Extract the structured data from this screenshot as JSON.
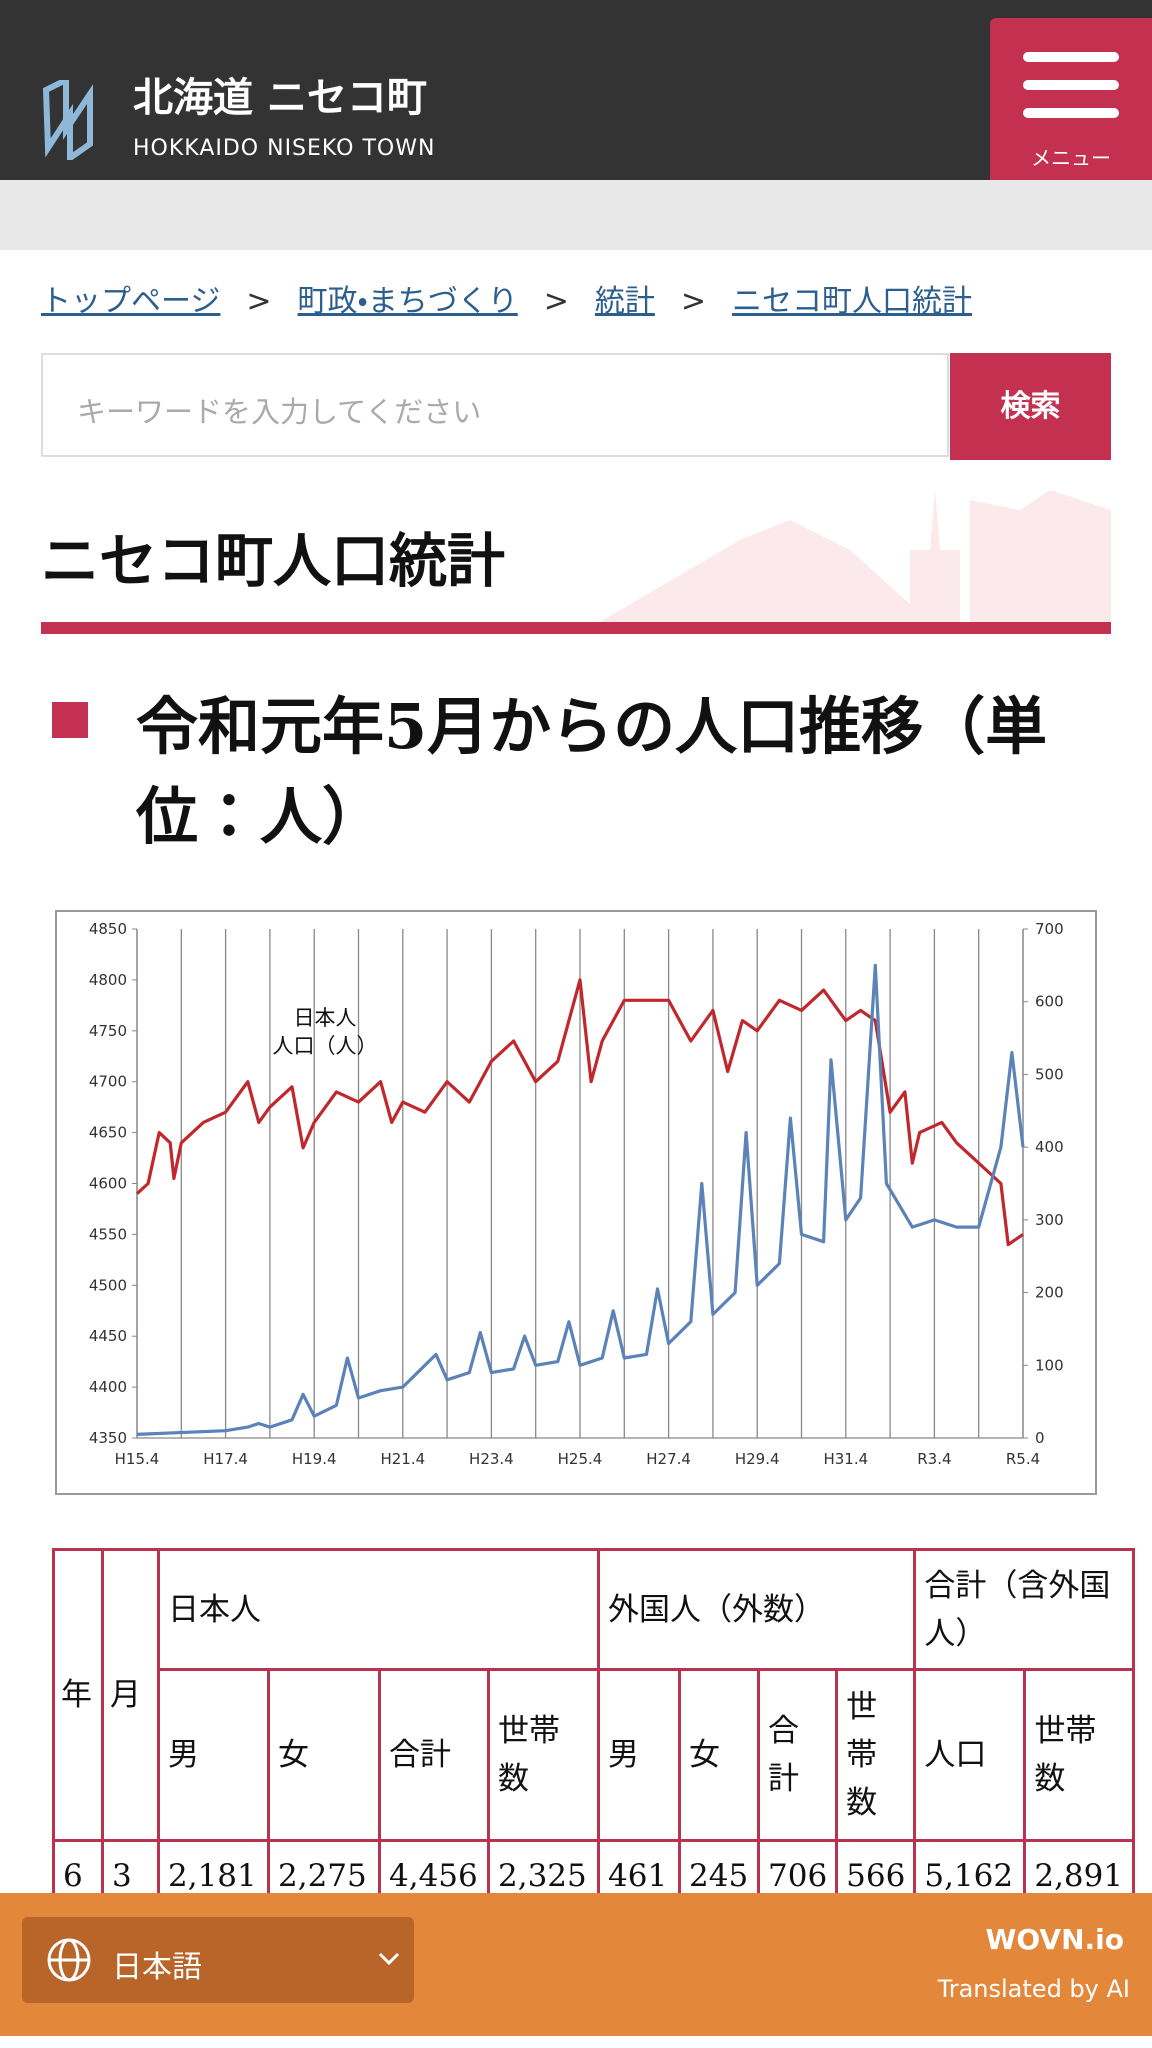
{
  "header": {
    "title": "北海道 ニセコ町",
    "subtitle": "HOKKAIDO NISEKO TOWN",
    "menu": "メニュー"
  },
  "breadcrumb": {
    "items": [
      "トップページ",
      "町政・まちづくり",
      "統計",
      "ニセコ町人口統計"
    ],
    "separator": ">"
  },
  "search": {
    "placeholder": "キーワードを入力してください",
    "button": "検索"
  },
  "page_title": "ニセコ町人口統計",
  "section_heading": "令和元年5月からの人口推移（単位：人）",
  "chart_data": {
    "type": "line",
    "annotation": [
      "日本人",
      "人口（人）"
    ],
    "xlim": [
      0,
      240
    ],
    "xticks": [
      {
        "value": 0,
        "label": "H15.4"
      },
      {
        "value": 24,
        "label": "H17.4"
      },
      {
        "value": 48,
        "label": "H19.4"
      },
      {
        "value": 72,
        "label": "H21.4"
      },
      {
        "value": 96,
        "label": "H23.4"
      },
      {
        "value": 120,
        "label": "H25.4"
      },
      {
        "value": 144,
        "label": "H27.4"
      },
      {
        "value": 168,
        "label": "H29.4"
      },
      {
        "value": 192,
        "label": "H31.4"
      },
      {
        "value": 216,
        "label": "R3.4"
      },
      {
        "value": 240,
        "label": "R5.4"
      }
    ],
    "xminorticks": [
      12,
      36,
      60,
      84,
      108,
      132,
      156,
      180,
      204,
      228
    ],
    "ylim": [
      4350,
      4850
    ],
    "yticks": [
      4350,
      4400,
      4450,
      4500,
      4550,
      4600,
      4650,
      4700,
      4750,
      4800,
      4850
    ],
    "y2lim": [
      0,
      700
    ],
    "y2ticks": [
      0,
      100,
      200,
      300,
      400,
      500,
      600,
      700
    ],
    "grid": "x",
    "series": [
      {
        "color": "#c0282c",
        "axis": "y",
        "x": [
          0,
          3,
          6,
          9,
          10,
          12,
          18,
          24,
          30,
          33,
          36,
          42,
          45,
          48,
          54,
          60,
          66,
          69,
          72,
          78,
          84,
          90,
          96,
          102,
          108,
          114,
          120,
          123,
          126,
          132,
          138,
          144,
          150,
          156,
          160,
          164,
          168,
          174,
          180,
          186,
          192,
          196,
          200,
          204,
          208,
          210,
          212,
          218,
          222,
          228,
          234,
          236,
          240
        ],
        "values": [
          4590,
          4600,
          4650,
          4640,
          4605,
          4640,
          4660,
          4670,
          4700,
          4660,
          4675,
          4695,
          4635,
          4660,
          4690,
          4680,
          4700,
          4660,
          4680,
          4670,
          4700,
          4680,
          4720,
          4740,
          4700,
          4720,
          4800,
          4700,
          4740,
          4780,
          4780,
          4780,
          4740,
          4770,
          4710,
          4760,
          4750,
          4780,
          4770,
          4790,
          4760,
          4770,
          4760,
          4670,
          4690,
          4620,
          4650,
          4660,
          4640,
          4620,
          4600,
          4540,
          4550
        ]
      },
      {
        "color": "#5b83b8",
        "axis": "y2",
        "x": [
          0,
          24,
          30,
          33,
          36,
          42,
          45,
          48,
          54,
          57,
          60,
          66,
          72,
          78,
          81,
          84,
          90,
          93,
          96,
          102,
          105,
          108,
          114,
          117,
          120,
          126,
          129,
          132,
          138,
          141,
          144,
          150,
          153,
          156,
          162,
          165,
          168,
          174,
          177,
          180,
          186,
          188,
          192,
          196,
          200,
          203,
          210,
          216,
          222,
          228,
          234,
          237,
          240
        ],
        "values": [
          5,
          10,
          15,
          20,
          15,
          25,
          60,
          30,
          45,
          110,
          55,
          65,
          70,
          100,
          115,
          80,
          90,
          145,
          90,
          95,
          140,
          100,
          105,
          160,
          100,
          110,
          175,
          110,
          115,
          205,
          130,
          160,
          350,
          170,
          200,
          420,
          210,
          240,
          440,
          280,
          270,
          520,
          300,
          330,
          650,
          350,
          290,
          300,
          290,
          290,
          400,
          530,
          400
        ]
      }
    ]
  },
  "table": {
    "header": [
      "年",
      "月",
      "日本人",
      "外国人（外数）",
      "合計（含外国人）"
    ],
    "subheader": [
      "男",
      "女",
      "合計",
      "世帯数",
      "男",
      "女",
      "合計",
      "世帯数",
      "人口",
      "世帯数"
    ],
    "rows": [
      [
        "6",
        "3",
        "2,181",
        "2,275",
        "4,456",
        "2,325",
        "461",
        "245",
        "706",
        "566",
        "5,162",
        "2,891"
      ]
    ]
  },
  "footer": {
    "language": "日本語",
    "brand": "WOVN.io",
    "note": "Translated by AI"
  }
}
